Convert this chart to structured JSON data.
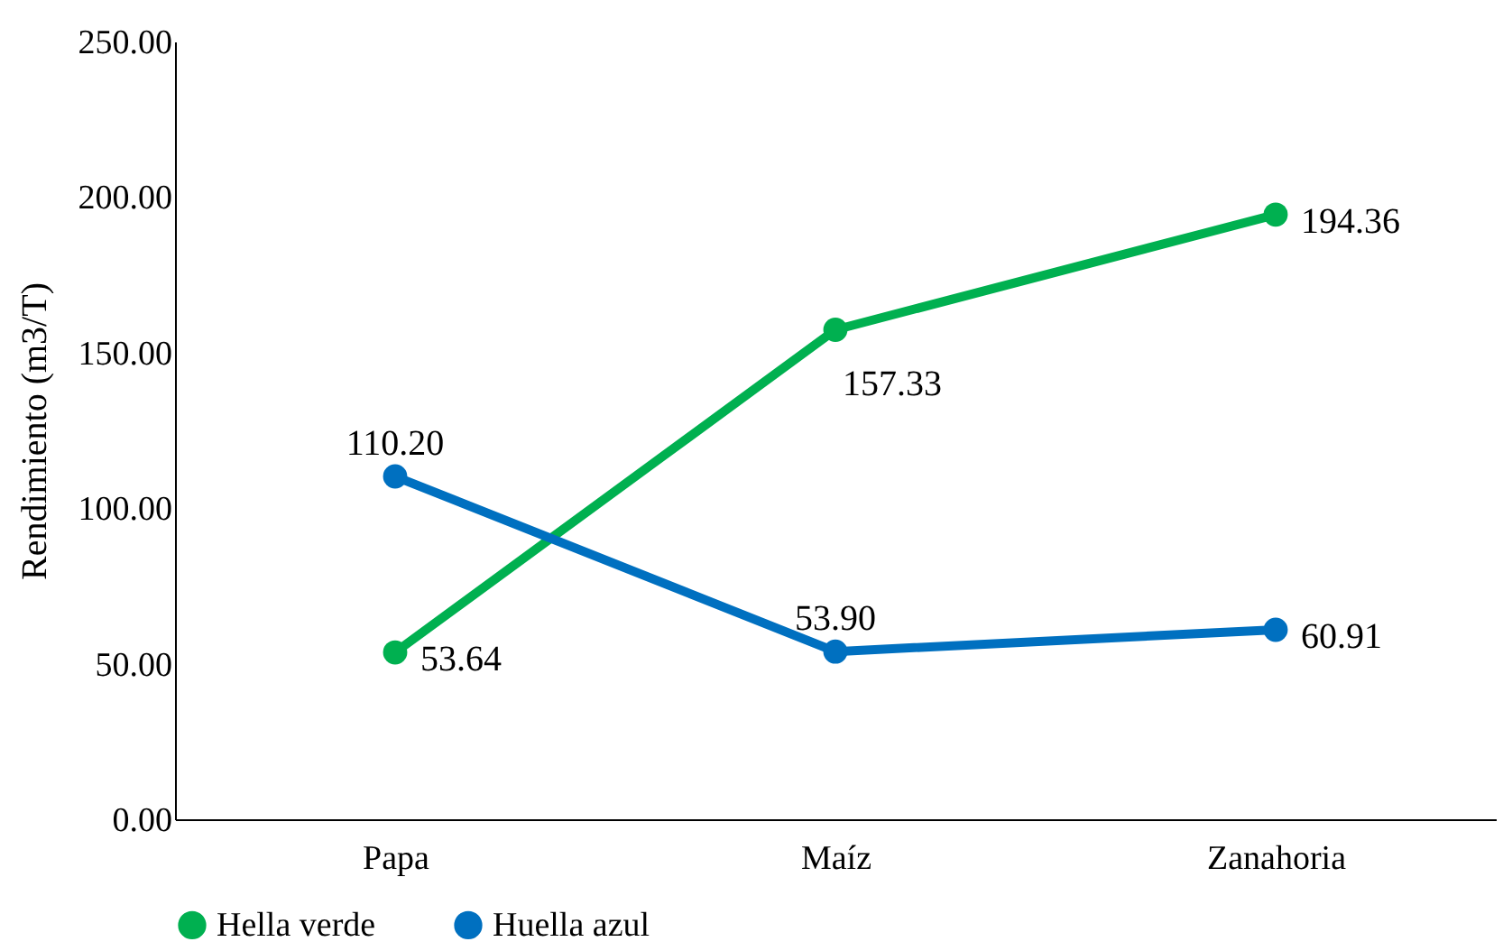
{
  "chart_data": {
    "type": "line",
    "ylabel": "Rendimiento (m3/T)",
    "categories": [
      "Papa",
      "Maíz",
      "Zanahoria"
    ],
    "series": [
      {
        "name": "Hella verde",
        "color": "#00b050",
        "values": [
          53.64,
          157.33,
          194.36
        ],
        "value_labels": [
          "53.64",
          "157.33",
          "194.36"
        ]
      },
      {
        "name": "Huella azul",
        "color": "#0070c0",
        "values": [
          110.2,
          53.9,
          60.91
        ],
        "value_labels": [
          "110.20",
          "53.90",
          "60.91"
        ]
      }
    ],
    "ylim": [
      0,
      250
    ],
    "yticks": [
      {
        "value": 0,
        "label": "0.00"
      },
      {
        "value": 50,
        "label": "50.00"
      },
      {
        "value": 100,
        "label": "100.00"
      },
      {
        "value": 150,
        "label": "150.00"
      },
      {
        "value": 200,
        "label": "200.00"
      },
      {
        "value": 250,
        "label": "250.00"
      }
    ],
    "grid": false,
    "legend": "bottom",
    "marker": "circle",
    "line_style": "solid"
  }
}
